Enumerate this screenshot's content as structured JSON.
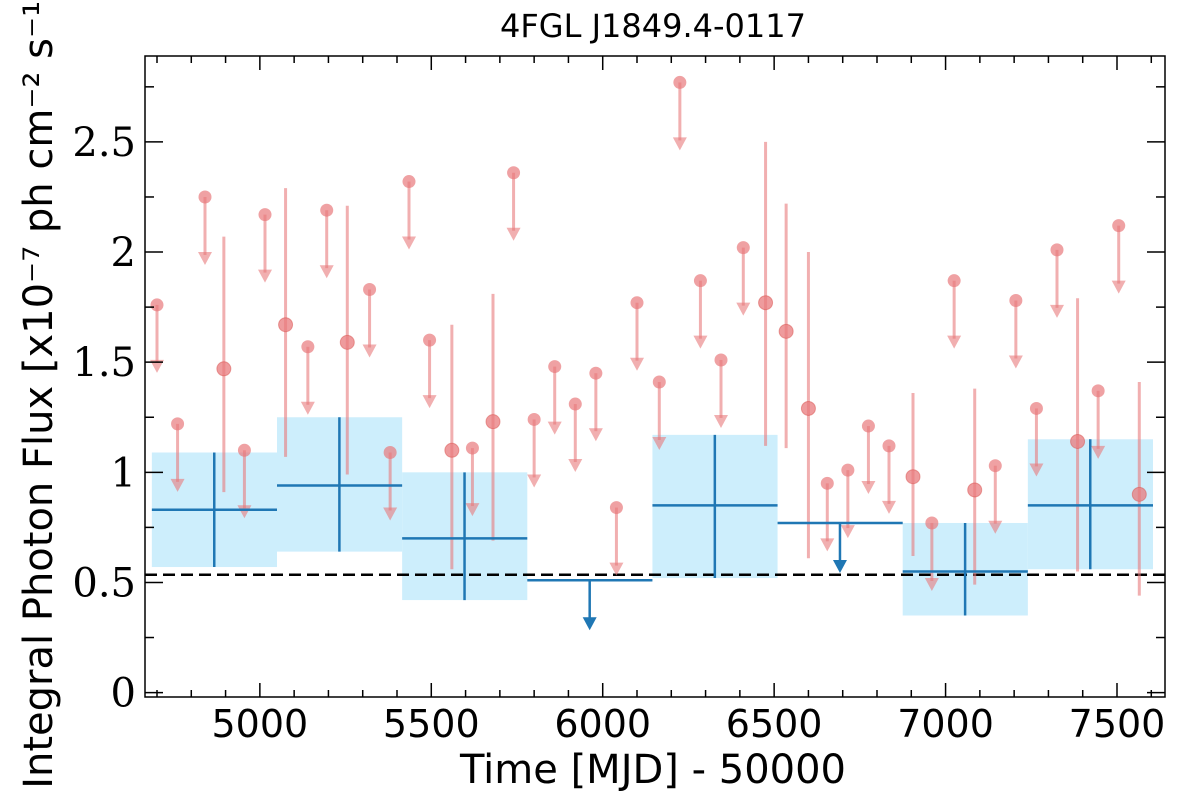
{
  "chart_data": {
    "type": "scatter",
    "title": "4FGL J1849.4-0117",
    "xlabel": "Time [MJD] - 50000",
    "ylabel": "Integral Photon Flux [x10⁻⁷ ph cm⁻² s⁻¹]",
    "xlim": [
      4665,
      7640
    ],
    "ylim": [
      -0.02,
      2.89
    ],
    "xticks": [
      5000,
      5500,
      6000,
      6500,
      7000,
      7500
    ],
    "xtick_labels": [
      "5000",
      "5500",
      "6000",
      "6500",
      "7000",
      "7500"
    ],
    "yticks": [
      0,
      0.5,
      1,
      1.5,
      2,
      2.5
    ],
    "ytick_labels": [
      "0",
      "0.5",
      "1",
      "1.5",
      "2",
      "2.5"
    ],
    "baseline": 0.535,
    "colors": {
      "short_bins": "#e8797c",
      "long_bins": "#1f77b4",
      "band": "#cdeefc",
      "baseline": "#000000"
    },
    "short_bin_detections": [
      {
        "x": 4895,
        "y": 1.47,
        "ylo": 0.91,
        "yhi": 2.07
      },
      {
        "x": 5075,
        "y": 1.67,
        "ylo": 1.07,
        "yhi": 2.29
      },
      {
        "x": 5255,
        "y": 1.59,
        "ylo": 0.99,
        "yhi": 2.21
      },
      {
        "x": 5560,
        "y": 1.1,
        "ylo": 0.56,
        "yhi": 1.67
      },
      {
        "x": 5680,
        "y": 1.23,
        "ylo": 0.69,
        "yhi": 1.81
      },
      {
        "x": 6475,
        "y": 1.77,
        "ylo": 1.12,
        "yhi": 2.5
      },
      {
        "x": 6535,
        "y": 1.64,
        "ylo": 1.11,
        "yhi": 2.22
      },
      {
        "x": 6600,
        "y": 1.29,
        "ylo": 0.61,
        "yhi": 2.0
      },
      {
        "x": 6905,
        "y": 0.98,
        "ylo": 0.62,
        "yhi": 1.36
      },
      {
        "x": 7085,
        "y": 0.92,
        "ylo": 0.49,
        "yhi": 1.38
      },
      {
        "x": 7385,
        "y": 1.14,
        "ylo": 0.55,
        "yhi": 1.79
      },
      {
        "x": 7565,
        "y": 0.9,
        "ylo": 0.44,
        "yhi": 1.41
      }
    ],
    "short_bin_upper_limits": [
      {
        "x": 4700,
        "y": 1.76
      },
      {
        "x": 4760,
        "y": 1.22
      },
      {
        "x": 4840,
        "y": 2.25
      },
      {
        "x": 4955,
        "y": 1.1
      },
      {
        "x": 5015,
        "y": 2.17
      },
      {
        "x": 5140,
        "y": 1.57
      },
      {
        "x": 5195,
        "y": 2.19
      },
      {
        "x": 5320,
        "y": 1.83
      },
      {
        "x": 5380,
        "y": 1.09
      },
      {
        "x": 5435,
        "y": 2.32
      },
      {
        "x": 5495,
        "y": 1.6
      },
      {
        "x": 5620,
        "y": 1.11
      },
      {
        "x": 5740,
        "y": 2.36
      },
      {
        "x": 5800,
        "y": 1.24
      },
      {
        "x": 5860,
        "y": 1.48
      },
      {
        "x": 5920,
        "y": 1.31
      },
      {
        "x": 5980,
        "y": 1.45
      },
      {
        "x": 6040,
        "y": 0.84
      },
      {
        "x": 6100,
        "y": 1.77
      },
      {
        "x": 6165,
        "y": 1.41
      },
      {
        "x": 6225,
        "y": 2.77
      },
      {
        "x": 6285,
        "y": 1.87
      },
      {
        "x": 6345,
        "y": 1.51
      },
      {
        "x": 6410,
        "y": 2.02
      },
      {
        "x": 6655,
        "y": 0.95
      },
      {
        "x": 6715,
        "y": 1.01
      },
      {
        "x": 6775,
        "y": 1.21
      },
      {
        "x": 6835,
        "y": 1.12
      },
      {
        "x": 6960,
        "y": 0.77
      },
      {
        "x": 7025,
        "y": 1.87
      },
      {
        "x": 7145,
        "y": 1.03
      },
      {
        "x": 7205,
        "y": 1.78
      },
      {
        "x": 7265,
        "y": 1.29
      },
      {
        "x": 7325,
        "y": 2.01
      },
      {
        "x": 7445,
        "y": 1.37
      },
      {
        "x": 7505,
        "y": 2.12
      }
    ],
    "long_bin_detections": [
      {
        "xlo": 4685,
        "xhi": 5050,
        "x": 4867,
        "y": 0.83,
        "ylo": 0.57,
        "yhi": 1.09
      },
      {
        "xlo": 5050,
        "xhi": 5415,
        "x": 5232,
        "y": 0.94,
        "ylo": 0.64,
        "yhi": 1.25
      },
      {
        "xlo": 5415,
        "xhi": 5780,
        "x": 5597,
        "y": 0.7,
        "ylo": 0.42,
        "yhi": 1.0
      },
      {
        "xlo": 6145,
        "xhi": 6510,
        "x": 6327,
        "y": 0.85,
        "ylo": 0.52,
        "yhi": 1.17
      },
      {
        "xlo": 6875,
        "xhi": 7240,
        "x": 7057,
        "y": 0.55,
        "ylo": 0.35,
        "yhi": 0.77
      },
      {
        "xlo": 7240,
        "xhi": 7605,
        "x": 7422,
        "y": 0.85,
        "ylo": 0.56,
        "yhi": 1.15
      }
    ],
    "long_bin_upper_limits": [
      {
        "xlo": 5780,
        "xhi": 6145,
        "x": 5962,
        "y": 0.51
      },
      {
        "xlo": 6510,
        "xhi": 6875,
        "x": 6692,
        "y": 0.77
      }
    ]
  }
}
